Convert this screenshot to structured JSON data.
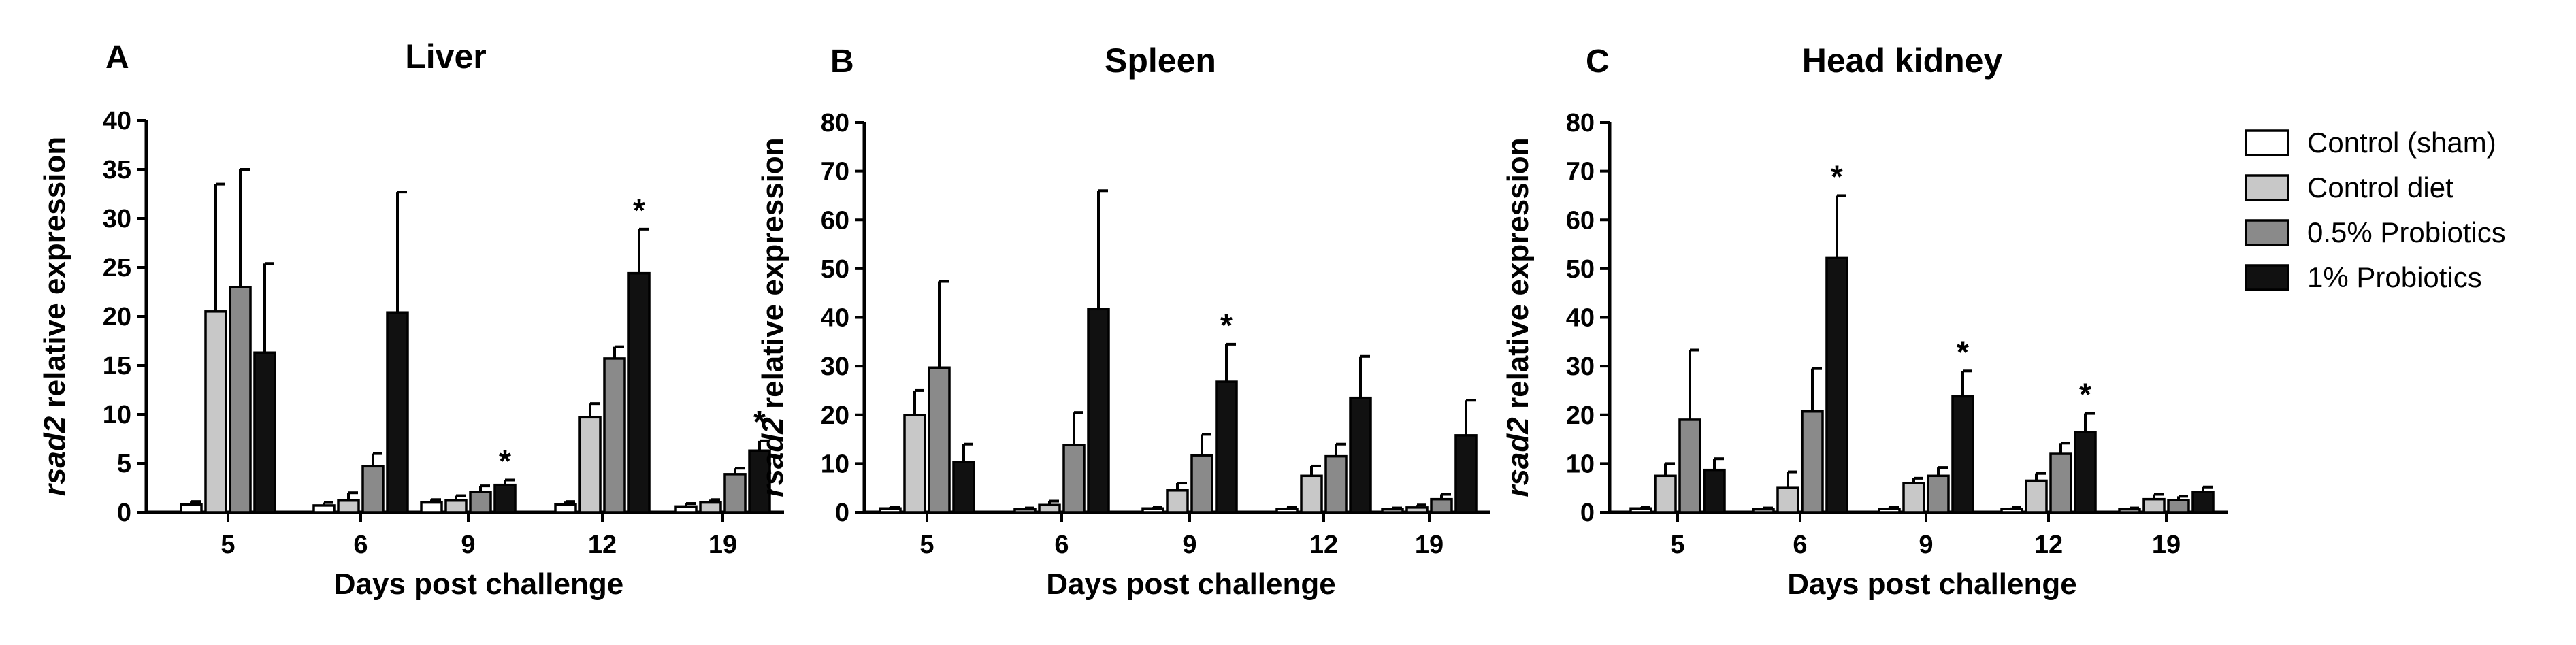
{
  "legend": {
    "entries": [
      {
        "label": "Control (sham)",
        "color": "#ffffff"
      },
      {
        "label": "Control diet",
        "color": "#c8c8c8"
      },
      {
        "label": "0.5% Probiotics",
        "color": "#8a8a8a"
      },
      {
        "label": "1% Probiotics",
        "color": "#111111"
      }
    ]
  },
  "chart_data": [
    {
      "type": "bar",
      "panel": "A",
      "title": "Liver",
      "xlabel": "Days post challenge",
      "ylabel_gene": "rsad2",
      "ylabel_rest": " relative expression",
      "categories": [
        "5",
        "6",
        "9",
        "12",
        "19"
      ],
      "ylim": [
        0,
        40
      ],
      "yticks": [
        0,
        5,
        10,
        15,
        20,
        25,
        30,
        35,
        40
      ],
      "series": [
        {
          "name": "Control (sham)",
          "values": [
            0.8,
            0.7,
            1.0,
            0.8,
            0.6
          ],
          "errors": [
            0.3,
            0.3,
            0.3,
            0.3,
            0.3
          ],
          "significant": [
            false,
            false,
            false,
            false,
            false
          ]
        },
        {
          "name": "Control diet",
          "values": [
            20.5,
            1.2,
            1.2,
            9.7,
            1.0
          ],
          "errors": [
            13.0,
            0.8,
            0.5,
            1.4,
            0.3
          ],
          "significant": [
            false,
            false,
            false,
            false,
            false
          ]
        },
        {
          "name": "0.5% Probiotics",
          "values": [
            23.0,
            4.7,
            2.1,
            15.7,
            3.9
          ],
          "errors": [
            12.0,
            1.3,
            0.6,
            1.2,
            0.6
          ],
          "significant": [
            false,
            false,
            false,
            false,
            false
          ]
        },
        {
          "name": "1% Probiotics",
          "values": [
            16.3,
            20.4,
            2.8,
            24.4,
            6.3
          ],
          "errors": [
            9.1,
            12.3,
            0.5,
            4.5,
            1.0
          ],
          "significant": [
            false,
            false,
            true,
            true,
            true
          ]
        }
      ]
    },
    {
      "type": "bar",
      "panel": "B",
      "title": "Spleen",
      "xlabel": "Days post challenge",
      "ylabel_gene": "rsad2",
      "ylabel_rest": " relative expression",
      "categories": [
        "5",
        "6",
        "9",
        "12",
        "19"
      ],
      "ylim": [
        0,
        80
      ],
      "yticks": [
        0,
        10,
        20,
        30,
        40,
        50,
        60,
        70,
        80
      ],
      "series": [
        {
          "name": "Control (sham)",
          "values": [
            0.8,
            0.6,
            0.8,
            0.7,
            0.6
          ],
          "errors": [
            0.3,
            0.3,
            0.3,
            0.3,
            0.3
          ],
          "significant": [
            false,
            false,
            false,
            false,
            false
          ]
        },
        {
          "name": "Control diet",
          "values": [
            20.0,
            1.5,
            4.5,
            7.5,
            1.0
          ],
          "errors": [
            5.0,
            0.8,
            1.5,
            2.0,
            0.5
          ],
          "significant": [
            false,
            false,
            false,
            false,
            false
          ]
        },
        {
          "name": "0.5% Probiotics",
          "values": [
            29.7,
            13.8,
            11.7,
            11.5,
            2.7
          ],
          "errors": [
            17.7,
            6.7,
            4.3,
            2.5,
            1.0
          ],
          "significant": [
            false,
            false,
            false,
            false,
            false
          ]
        },
        {
          "name": "1% Probiotics",
          "values": [
            10.3,
            41.7,
            26.8,
            23.5,
            15.8
          ],
          "errors": [
            3.7,
            24.3,
            7.7,
            8.5,
            7.2
          ],
          "significant": [
            false,
            false,
            true,
            false,
            false
          ]
        }
      ]
    },
    {
      "type": "bar",
      "panel": "C",
      "title": "Head kidney",
      "xlabel": "Days post challenge",
      "ylabel_gene": "rsad2",
      "ylabel_rest": " relative expression",
      "categories": [
        "5",
        "6",
        "9",
        "12",
        "19"
      ],
      "ylim": [
        0,
        80
      ],
      "yticks": [
        0,
        10,
        20,
        30,
        40,
        50,
        60,
        70,
        80
      ],
      "series": [
        {
          "name": "Control (sham)",
          "values": [
            0.8,
            0.6,
            0.7,
            0.7,
            0.6
          ],
          "errors": [
            0.3,
            0.3,
            0.3,
            0.3,
            0.3
          ],
          "significant": [
            false,
            false,
            false,
            false,
            false
          ]
        },
        {
          "name": "Control diet",
          "values": [
            7.5,
            5.0,
            6.0,
            6.5,
            2.7
          ],
          "errors": [
            2.5,
            3.3,
            1.0,
            1.5,
            1.0
          ],
          "significant": [
            false,
            false,
            false,
            false,
            false
          ]
        },
        {
          "name": "0.5% Probiotics",
          "values": [
            19.0,
            20.7,
            7.5,
            12.0,
            2.5
          ],
          "errors": [
            14.3,
            8.8,
            1.7,
            2.2,
            0.8
          ],
          "significant": [
            false,
            false,
            false,
            false,
            false
          ]
        },
        {
          "name": "1% Probiotics",
          "values": [
            8.7,
            52.3,
            23.8,
            16.5,
            4.2
          ],
          "errors": [
            2.3,
            12.7,
            5.2,
            3.8,
            1.0
          ],
          "significant": [
            false,
            true,
            true,
            true,
            false
          ]
        }
      ]
    }
  ]
}
